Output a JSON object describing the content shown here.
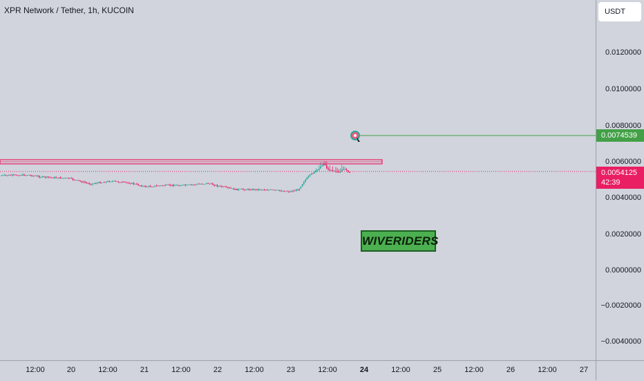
{
  "symbol": {
    "title": "XPR Network / Tether, 1h, KUCOIN"
  },
  "currency": {
    "label": "USDT"
  },
  "price_scale": {
    "ticks": [
      "0.0120000",
      "0.0100000",
      "0.0080000",
      "0.0060000",
      "0.0040000",
      "0.0020000",
      "0.0000000",
      "−0.0020000",
      "−0.0040000"
    ],
    "target_price": "0.0074539",
    "last_price": "0.0054125",
    "countdown": "42:39"
  },
  "time_scale": {
    "ticks": [
      "12:00",
      "20",
      "12:00",
      "21",
      "12:00",
      "22",
      "12:00",
      "23",
      "12:00",
      "24",
      "12:00",
      "25",
      "12:00",
      "26",
      "12:00",
      "27"
    ]
  },
  "watermark": {
    "text": "WIVERIDERS"
  },
  "colors": {
    "target_line": "#43a047",
    "resistance": "#e91e63",
    "up_candle": "#26a69a",
    "down_candle": "#e91e63",
    "background": "#d1d4dc"
  },
  "icons": {
    "target_marker": "target-icon"
  }
}
